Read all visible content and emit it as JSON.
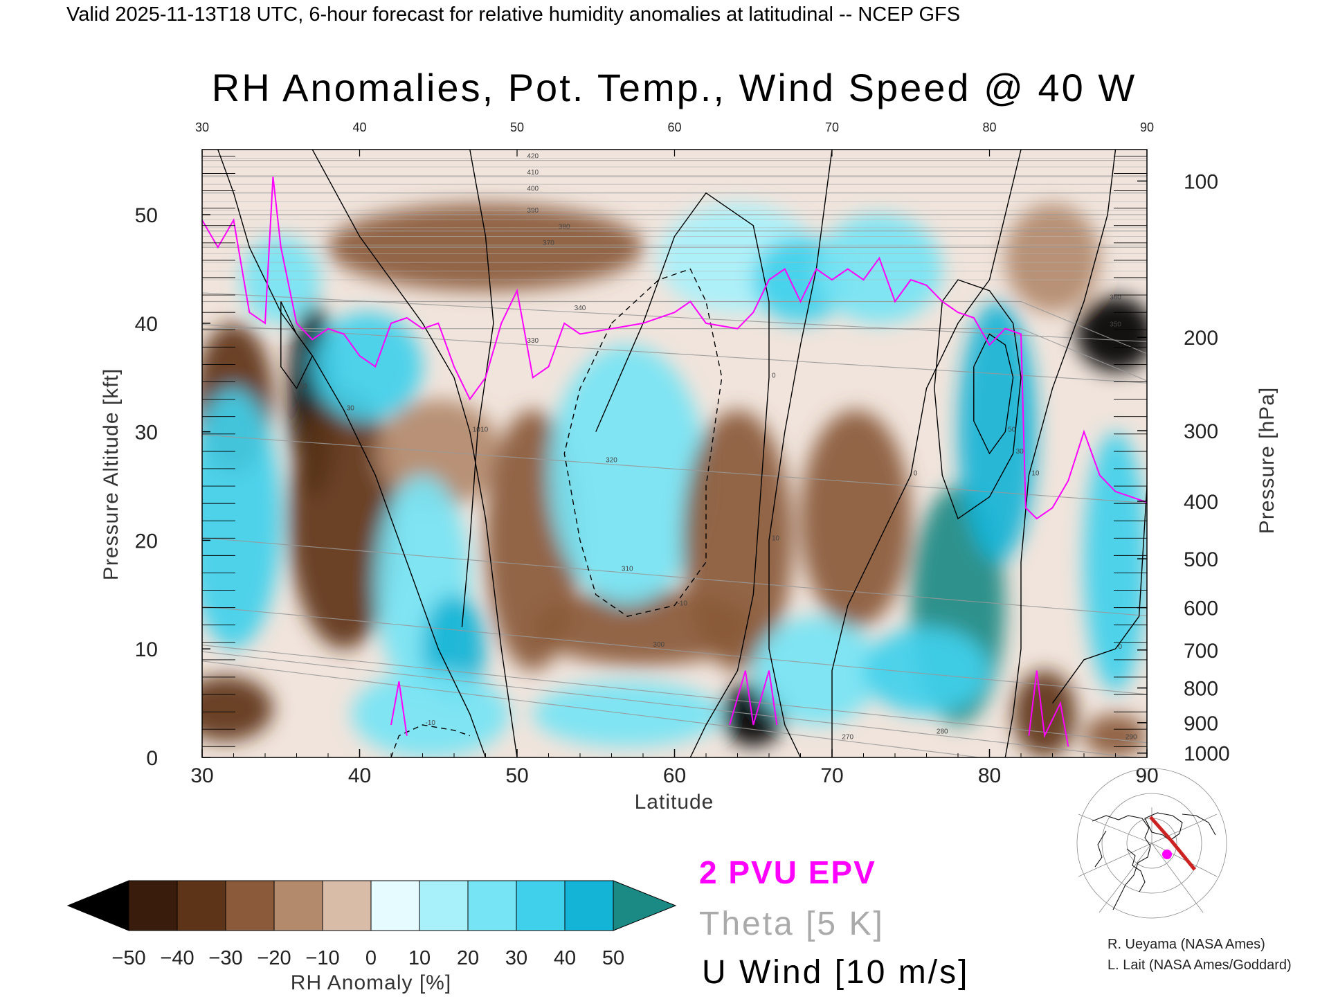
{
  "header": "Valid 2025-11-13T18 UTC, 6-hour forecast for relative humidity anomalies at latitudinal -- NCEP GFS",
  "colors": {
    "epv": "#ff00ff",
    "theta": "#999999",
    "wind": "#000000",
    "colorbar": [
      "#000000",
      "#3a1c0c",
      "#5e3418",
      "#8a5a3a",
      "#b38a6c",
      "#d8bca8",
      "#f2e6dd",
      "#e6fbff",
      "#a8f1fb",
      "#76e4f4",
      "#40d0ec",
      "#14b4d6",
      "#0588a8",
      "#1c8a84"
    ]
  },
  "chart_data": {
    "type": "heatmap",
    "title": "RH Anomalies, Pot. Temp., Wind Speed @ 40 W",
    "xlabel": "Latitude",
    "ylabel": "Pressure Altitude [kft]",
    "y2label": "Pressure [hPa]",
    "xlim": [
      30,
      90
    ],
    "ylim": [
      0,
      56
    ],
    "x_ticks": [
      30,
      40,
      50,
      60,
      70,
      80,
      90
    ],
    "y_ticks": [
      0,
      10,
      20,
      30,
      40,
      50
    ],
    "pressure_ticks": [
      {
        "hPa": "100",
        "kft": 53.1
      },
      {
        "hPa": "200",
        "kft": 38.7
      },
      {
        "hPa": "300",
        "kft": 30.1
      },
      {
        "hPa": "400",
        "kft": 23.6
      },
      {
        "hPa": "500",
        "kft": 18.3
      },
      {
        "hPa": "600",
        "kft": 13.8
      },
      {
        "hPa": "700",
        "kft": 9.9
      },
      {
        "hPa": "800",
        "kft": 6.4
      },
      {
        "hPa": "900",
        "kft": 3.2
      },
      {
        "hPa": "1000",
        "kft": 0.4
      }
    ],
    "colorbar": {
      "label": "RH Anomaly [%]",
      "ticks": [
        "-50",
        "-40",
        "-30",
        "-20",
        "-10",
        "0",
        "10",
        "20",
        "30",
        "40",
        "50"
      ]
    },
    "legend": {
      "epv": "2 PVU EPV",
      "theta": "Theta [5 K]",
      "wind": "U Wind [10 m/s]"
    },
    "rh_anomaly_blobs": [
      {
        "lat": 32,
        "alt": 33,
        "rx": 2.5,
        "ry": 7,
        "value": -45
      },
      {
        "lat": 31.5,
        "alt": 4.5,
        "rx": 3,
        "ry": 3,
        "value": -40
      },
      {
        "lat": 32,
        "alt": 22,
        "rx": 3,
        "ry": 12,
        "value": 30
      },
      {
        "lat": 37,
        "alt": 33,
        "rx": 1.5,
        "ry": 9,
        "value": -55
      },
      {
        "lat": 39,
        "alt": 22,
        "rx": 3.5,
        "ry": 12,
        "value": -38
      },
      {
        "lat": 40.5,
        "alt": 36,
        "rx": 3.5,
        "ry": 5,
        "value": 28
      },
      {
        "lat": 35,
        "alt": 44,
        "rx": 2.5,
        "ry": 4,
        "value": 25
      },
      {
        "lat": 45,
        "alt": 28,
        "rx": 4,
        "ry": 5,
        "value": -20
      },
      {
        "lat": 44,
        "alt": 16,
        "rx": 3,
        "ry": 10,
        "value": 25
      },
      {
        "lat": 46,
        "alt": 10,
        "rx": 2,
        "ry": 5,
        "value": 40
      },
      {
        "lat": 44.5,
        "alt": 4,
        "rx": 5,
        "ry": 4,
        "value": 22
      },
      {
        "lat": 48,
        "alt": 47,
        "rx": 10,
        "ry": 4,
        "value": -35
      },
      {
        "lat": 51,
        "alt": 20,
        "rx": 3,
        "ry": 12,
        "value": -30
      },
      {
        "lat": 58,
        "alt": 12,
        "rx": 7,
        "ry": 3.5,
        "value": -28
      },
      {
        "lat": 57,
        "alt": 26,
        "rx": 5,
        "ry": 12,
        "value": 20
      },
      {
        "lat": 57,
        "alt": 4,
        "rx": 6,
        "ry": 3,
        "value": 22
      },
      {
        "lat": 64,
        "alt": 20,
        "rx": 3.5,
        "ry": 12,
        "value": -28
      },
      {
        "lat": 65,
        "alt": 4,
        "rx": 2,
        "ry": 3,
        "value": -55
      },
      {
        "lat": 64,
        "alt": 46,
        "rx": 5,
        "ry": 5,
        "value": 15
      },
      {
        "lat": 68,
        "alt": 44,
        "rx": 3,
        "ry": 4,
        "value": 30
      },
      {
        "lat": 69,
        "alt": 8,
        "rx": 4,
        "ry": 5,
        "value": 25
      },
      {
        "lat": 71.5,
        "alt": 22,
        "rx": 3.5,
        "ry": 10,
        "value": -32
      },
      {
        "lat": 73,
        "alt": 45,
        "rx": 4,
        "ry": 5,
        "value": 25
      },
      {
        "lat": 78,
        "alt": 14,
        "rx": 3,
        "ry": 11,
        "value": 55
      },
      {
        "lat": 80.5,
        "alt": 30,
        "rx": 2.5,
        "ry": 12,
        "value": 40
      },
      {
        "lat": 76,
        "alt": 8,
        "rx": 4,
        "ry": 4,
        "value": 30
      },
      {
        "lat": 84,
        "alt": 46,
        "rx": 3,
        "ry": 5,
        "value": -25
      },
      {
        "lat": 88,
        "alt": 39,
        "rx": 2.5,
        "ry": 3.5,
        "value": -58
      },
      {
        "lat": 88,
        "alt": 18,
        "rx": 2,
        "ry": 12,
        "value": 35
      },
      {
        "lat": 83.5,
        "alt": 4,
        "rx": 2,
        "ry": 4,
        "value": -45
      },
      {
        "lat": 88,
        "alt": 2,
        "rx": 2,
        "ry": 2,
        "value": -30
      }
    ],
    "epv_2pvu": [
      [
        30,
        49.5
      ],
      [
        31,
        47
      ],
      [
        32,
        49.5
      ],
      [
        33,
        41
      ],
      [
        34,
        40
      ],
      [
        34.5,
        53.5
      ],
      [
        35,
        47
      ],
      [
        36,
        40
      ],
      [
        37,
        38.5
      ],
      [
        38,
        39.5
      ],
      [
        39,
        39
      ],
      [
        40,
        37
      ],
      [
        41,
        36
      ],
      [
        42,
        40
      ],
      [
        43,
        40.5
      ],
      [
        44,
        39.5
      ],
      [
        45,
        40
      ],
      [
        46,
        36
      ],
      [
        47,
        33
      ],
      [
        48,
        35
      ],
      [
        49,
        40
      ],
      [
        50,
        43
      ],
      [
        51,
        35
      ],
      [
        52,
        36
      ],
      [
        53,
        40
      ],
      [
        54,
        39
      ],
      [
        56,
        39.5
      ],
      [
        58,
        40
      ],
      [
        60,
        41
      ],
      [
        61,
        42
      ],
      [
        62,
        40
      ],
      [
        64,
        39.5
      ],
      [
        65,
        41
      ],
      [
        66,
        44
      ],
      [
        67,
        45
      ],
      [
        68,
        42
      ],
      [
        69,
        45
      ],
      [
        70,
        44
      ],
      [
        71,
        45
      ],
      [
        72,
        44
      ],
      [
        73,
        46
      ],
      [
        74,
        42
      ],
      [
        75,
        44
      ],
      [
        76,
        43.5
      ],
      [
        77,
        42
      ],
      [
        78,
        41
      ],
      [
        79,
        40.5
      ],
      [
        80,
        38
      ],
      [
        81,
        39.5
      ],
      [
        82,
        39
      ],
      [
        82.3,
        23
      ],
      [
        83,
        22
      ],
      [
        84,
        23
      ],
      [
        85,
        25.5
      ],
      [
        86,
        30
      ],
      [
        87,
        26
      ],
      [
        88,
        24.5
      ],
      [
        89,
        24
      ],
      [
        90,
        23.5
      ]
    ],
    "epv_2pvu_low": [
      [
        [
          42,
          3
        ],
        [
          42.5,
          7
        ],
        [
          43,
          2
        ]
      ],
      [
        [
          63.5,
          3
        ],
        [
          64.5,
          8
        ],
        [
          65,
          3
        ],
        [
          66,
          8
        ],
        [
          66.5,
          3
        ]
      ],
      [
        [
          82.5,
          2
        ],
        [
          83,
          8
        ],
        [
          83.5,
          2
        ],
        [
          84.5,
          5
        ],
        [
          85,
          1
        ]
      ]
    ],
    "theta_levels": [
      {
        "value": "270",
        "lat": 71,
        "alt": 1.5
      },
      {
        "value": "280",
        "lat": 77,
        "alt": 2
      },
      {
        "value": "290",
        "lat": 89,
        "alt": 1.5
      },
      {
        "value": "300",
        "lat": 59,
        "alt": 10
      },
      {
        "value": "310",
        "lat": 57,
        "alt": 17
      },
      {
        "value": "320",
        "lat": 56,
        "alt": 27
      },
      {
        "value": "330",
        "lat": 51,
        "alt": 38
      },
      {
        "value": "340",
        "lat": 54,
        "alt": 41
      },
      {
        "value": "350",
        "lat": 88,
        "alt": 39.5
      },
      {
        "value": "360",
        "lat": 88,
        "alt": 42
      },
      {
        "value": "370",
        "lat": 52,
        "alt": 47
      },
      {
        "value": "380",
        "lat": 53,
        "alt": 48.5
      },
      {
        "value": "390",
        "lat": 51,
        "alt": 50
      },
      {
        "value": "400",
        "lat": 51,
        "alt": 52
      },
      {
        "value": "410",
        "lat": 51,
        "alt": 53.5
      },
      {
        "value": "420",
        "lat": 51,
        "alt": 55
      }
    ],
    "u_wind_contours": [
      {
        "label": "10",
        "dashed": false,
        "points": [
          [
            37,
            56
          ],
          [
            40,
            48
          ],
          [
            44,
            40
          ],
          [
            46,
            35
          ],
          [
            47,
            30
          ],
          [
            48,
            22
          ],
          [
            49,
            10
          ],
          [
            50,
            0
          ]
        ]
      },
      {
        "label": "30",
        "dashed": false,
        "points": [
          [
            31,
            56
          ],
          [
            32,
            52
          ],
          [
            33,
            47
          ],
          [
            35,
            41
          ],
          [
            37,
            37
          ],
          [
            39,
            32
          ],
          [
            41,
            26
          ],
          [
            43,
            18
          ],
          [
            45,
            10
          ],
          [
            47,
            4
          ],
          [
            48,
            0
          ]
        ]
      },
      {
        "label": "50",
        "dashed": false,
        "points": [
          [
            35,
            42
          ],
          [
            36,
            39
          ],
          [
            37,
            37
          ],
          [
            36,
            34
          ],
          [
            35,
            36
          ],
          [
            35,
            42
          ]
        ]
      },
      {
        "label": "10",
        "dashed": false,
        "points": [
          [
            47,
            56
          ],
          [
            48,
            48
          ],
          [
            48.5,
            40
          ],
          [
            47.5,
            30
          ],
          [
            47,
            20
          ],
          [
            46.5,
            12
          ]
        ]
      },
      {
        "label": "0",
        "dashed": false,
        "points": [
          [
            55,
            30
          ],
          [
            58,
            40
          ],
          [
            60,
            48
          ],
          [
            62,
            52
          ],
          [
            65,
            49
          ],
          [
            66,
            42
          ],
          [
            66,
            35
          ],
          [
            65.5,
            25
          ],
          [
            65,
            15
          ],
          [
            64,
            8
          ],
          [
            62,
            3
          ],
          [
            61,
            0
          ]
        ]
      },
      {
        "label": "10",
        "dashed": false,
        "points": [
          [
            70,
            56
          ],
          [
            69,
            45
          ],
          [
            68,
            38
          ],
          [
            67,
            30
          ],
          [
            66,
            20
          ],
          [
            66,
            10
          ],
          [
            67,
            3
          ],
          [
            68,
            0
          ]
        ]
      },
      {
        "label": "0",
        "dashed": false,
        "points": [
          [
            82,
            56
          ],
          [
            81,
            50
          ],
          [
            80,
            44
          ],
          [
            78,
            40
          ],
          [
            76,
            34
          ],
          [
            75,
            26
          ],
          [
            73,
            20
          ],
          [
            71,
            14
          ],
          [
            70,
            8
          ],
          [
            70,
            0
          ]
        ]
      },
      {
        "label": "10",
        "dashed": false,
        "points": [
          [
            88,
            56
          ],
          [
            87.5,
            50
          ],
          [
            86,
            42
          ],
          [
            84,
            34
          ],
          [
            82.5,
            26
          ],
          [
            82,
            18
          ],
          [
            82,
            10
          ],
          [
            81.5,
            4
          ],
          [
            81,
            0
          ]
        ]
      },
      {
        "label": "30",
        "dashed": false,
        "points": [
          [
            77,
            42
          ],
          [
            78,
            44
          ],
          [
            80,
            43
          ],
          [
            81.5,
            40
          ],
          [
            82,
            35
          ],
          [
            81.5,
            28
          ],
          [
            80,
            24
          ],
          [
            78,
            22
          ],
          [
            77,
            26
          ],
          [
            76.5,
            34
          ],
          [
            77,
            42
          ]
        ]
      },
      {
        "label": "50",
        "dashed": false,
        "points": [
          [
            79,
            36
          ],
          [
            80,
            39
          ],
          [
            81,
            38
          ],
          [
            81.5,
            35
          ],
          [
            81,
            30
          ],
          [
            80,
            28
          ],
          [
            79,
            31
          ],
          [
            79,
            36
          ]
        ]
      },
      {
        "label": "0",
        "dashed": false,
        "points": [
          [
            84,
            5
          ],
          [
            86,
            9
          ],
          [
            88,
            10
          ],
          [
            89.5,
            13
          ],
          [
            90,
            25
          ]
        ]
      },
      {
        "label": "-10",
        "dashed": true,
        "points": [
          [
            56,
            40
          ],
          [
            59,
            44
          ],
          [
            61,
            45
          ],
          [
            62,
            42
          ],
          [
            63,
            35
          ],
          [
            62,
            25
          ],
          [
            62,
            18
          ],
          [
            60,
            14
          ],
          [
            57,
            13
          ],
          [
            55,
            15
          ],
          [
            54,
            20
          ],
          [
            53,
            28
          ],
          [
            54,
            34
          ],
          [
            56,
            40
          ]
        ]
      },
      {
        "label": "-10",
        "dashed": true,
        "points": [
          [
            42,
            0
          ],
          [
            42.5,
            2
          ],
          [
            44,
            3
          ],
          [
            46,
            2.5
          ],
          [
            47,
            2
          ]
        ]
      }
    ]
  },
  "credits": [
    "R. Ueyama (NASA Ames)",
    "L. Lait (NASA Ames/Goddard)"
  ],
  "inset_map": {
    "marker_color": "#ff00ff",
    "track_color": "#cc2222"
  }
}
